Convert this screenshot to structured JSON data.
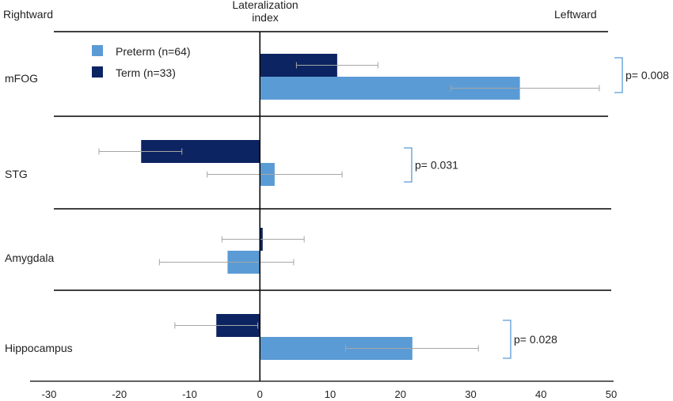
{
  "chart_data": {
    "type": "bar",
    "orientation": "horizontal",
    "header_left": "Rightward",
    "header_center": "Lateralization index",
    "header_right": "Leftward",
    "categories": [
      "mFOG",
      "STG",
      "Amygdala",
      "Hippocampus"
    ],
    "series": [
      {
        "name": "Preterm (n=64)",
        "color": "#5b9bd5",
        "values": [
          37,
          2.1,
          -4.6,
          21.7
        ],
        "error_low": [
          27.2,
          -7.5,
          -14.3,
          12.2
        ],
        "error_high": [
          48.3,
          11.7,
          4.8,
          31.1
        ]
      },
      {
        "name": "Term (n=33)",
        "color": "#0c2461",
        "values": [
          11,
          -16.9,
          0.4,
          -6.2
        ],
        "error_low": [
          5.2,
          -22.9,
          -5.4,
          -12.1
        ],
        "error_high": [
          16.8,
          -11.1,
          6.3,
          -0.3
        ]
      }
    ],
    "annotations": [
      {
        "category": "mFOG",
        "text": "p= 0.008"
      },
      {
        "category": "STG",
        "text": "p= 0.031"
      },
      {
        "category": "Hippocampus",
        "text": "p= 0.028"
      }
    ],
    "xlim": [
      -30,
      50
    ],
    "xticks": [
      -30,
      -20,
      -10,
      0,
      10,
      20,
      30,
      40,
      50
    ],
    "legend_position": "top-left"
  }
}
